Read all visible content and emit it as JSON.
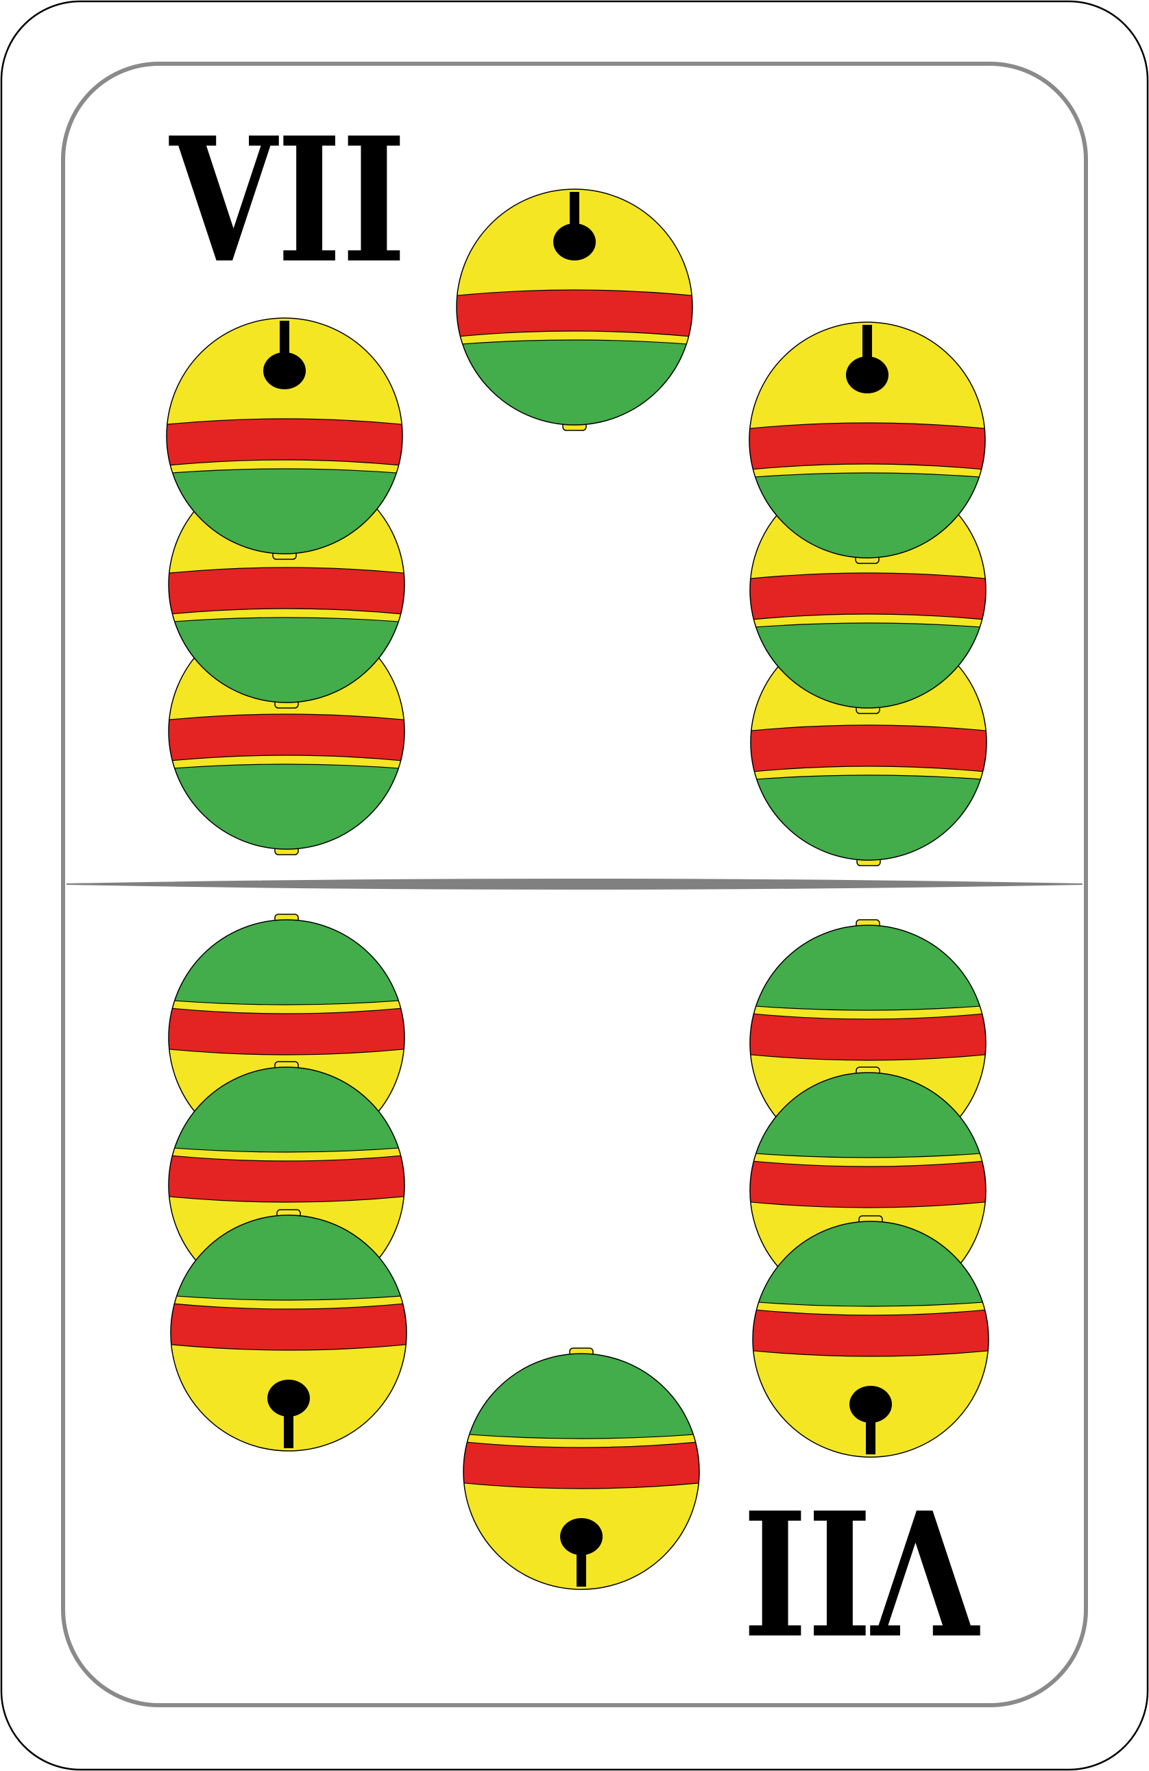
{
  "card": {
    "rank_top": "VII",
    "rank_bottom": "VII",
    "suit_icon": "bell-icon",
    "bell_count": 14
  },
  "colors": {
    "bell_yellow": "#f4e623",
    "bell_red": "#e32422",
    "bell_green": "#43ac4b",
    "ink": "#000000",
    "frame_gray": "#8a8a8a"
  }
}
